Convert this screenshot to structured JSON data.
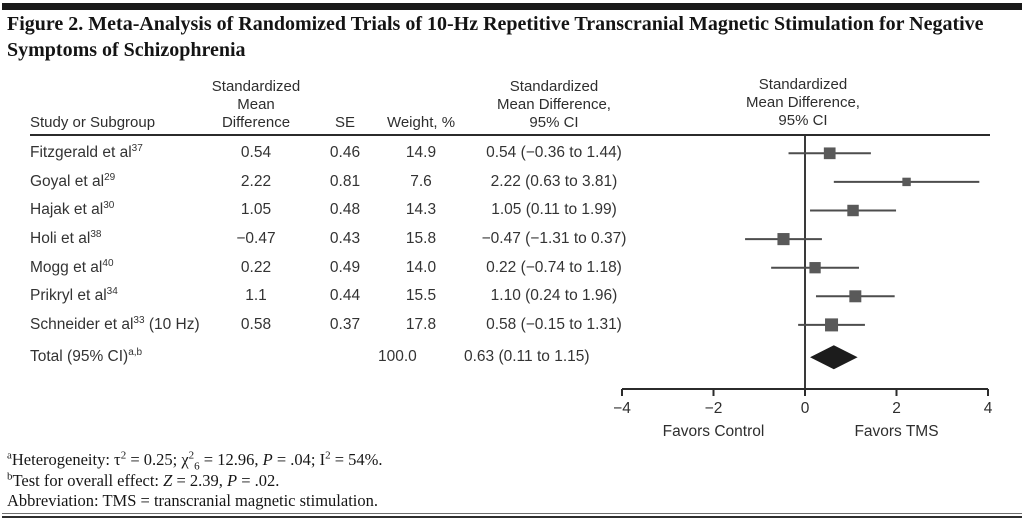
{
  "title": {
    "line1": "Figure 2. Meta-Analysis of Randomized Trials of 10-Hz Repetitive Transcranial Magnetic Stimulation for Negative",
    "line2": "Symptoms of Schizophrenia"
  },
  "table": {
    "headers": {
      "study": "Study or Subgroup",
      "smd": [
        "Standardized",
        "Mean",
        "Difference"
      ],
      "se": "SE",
      "weight": "Weight, %",
      "ci": [
        "Standardized",
        "Mean Difference,",
        "95% CI"
      ],
      "plot": [
        "Standardized",
        "Mean Difference,",
        "95% CI"
      ]
    },
    "rows": [
      {
        "name": "Fitzgerald et al",
        "ref": "37",
        "suffix": "",
        "smd": "0.54",
        "se": "0.46",
        "weight": "14.9",
        "ci": "0.54 (−0.36 to 1.44)"
      },
      {
        "name": "Goyal et al",
        "ref": "29",
        "suffix": "",
        "smd": "2.22",
        "se": "0.81",
        "weight": "7.6",
        "ci": "2.22 (0.63 to 3.81)"
      },
      {
        "name": "Hajak et al",
        "ref": "30",
        "suffix": "",
        "smd": "1.05",
        "se": "0.48",
        "weight": "14.3",
        "ci": "1.05 (0.11 to 1.99)"
      },
      {
        "name": "Holi et al",
        "ref": "38",
        "suffix": "",
        "smd": "−0.47",
        "se": "0.43",
        "weight": "15.8",
        "ci": "−0.47 (−1.31 to 0.37)"
      },
      {
        "name": "Mogg et al",
        "ref": "40",
        "suffix": "",
        "smd": "0.22",
        "se": "0.49",
        "weight": "14.0",
        "ci": "0.22 (−0.74 to 1.18)"
      },
      {
        "name": "Prikryl et al",
        "ref": "34",
        "suffix": "",
        "smd": "1.1",
        "se": "0.44",
        "weight": "15.5",
        "ci": "1.10 (0.24 to 1.96)"
      },
      {
        "name": "Schneider et al",
        "ref": "33",
        "suffix": " (10 Hz)",
        "smd": "0.58",
        "se": "0.37",
        "weight": "17.8",
        "ci": "0.58 (−0.15 to 1.31)"
      }
    ],
    "total": {
      "name": "Total (95% CI)",
      "ref": "a,b",
      "weight": "100.0",
      "ci": "0.63 (0.11 to 1.15)"
    }
  },
  "footnotes": {
    "a": {
      "marker": "a",
      "t1": "Heterogeneity: τ",
      "s1": "2",
      "t2": " = 0.25; χ",
      "s2": "2",
      "sb2": "6",
      "t3": " = 12.96, ",
      "i1": "P",
      "t4": " = .04; I",
      "s3": "2",
      "t5": " = 54%."
    },
    "b": {
      "marker": "b",
      "t1": "Test for overall effect: ",
      "i1": "Z",
      "t2": " = 2.39, ",
      "i2": "P",
      "t3": " = .02."
    },
    "abbr": "Abbreviation: TMS = transcranial magnetic stimulation."
  },
  "chart_data": {
    "type": "forest",
    "title": "Figure 2. Meta-Analysis of Randomized Trials of 10-Hz Repetitive Transcranial Magnetic Stimulation for Negative Symptoms of Schizophrenia",
    "xlim": [
      -4,
      4
    ],
    "x_ticks": [
      {
        "v": -4,
        "label": "−4"
      },
      {
        "v": -2,
        "label": "−2"
      },
      {
        "v": 0,
        "label": "0"
      },
      {
        "v": 2,
        "label": "2"
      },
      {
        "v": 4,
        "label": "4"
      }
    ],
    "favors_left": "Favors Control",
    "favors_right": "Favors TMS",
    "studies": [
      {
        "label": "Fitzgerald et al 37",
        "smd": 0.54,
        "ci_low": -0.36,
        "ci_high": 1.44,
        "weight": 14.9
      },
      {
        "label": "Goyal et al 29",
        "smd": 2.22,
        "ci_low": 0.63,
        "ci_high": 3.81,
        "weight": 7.6
      },
      {
        "label": "Hajak et al 30",
        "smd": 1.05,
        "ci_low": 0.11,
        "ci_high": 1.99,
        "weight": 14.3
      },
      {
        "label": "Holi et al 38",
        "smd": -0.47,
        "ci_low": -1.31,
        "ci_high": 0.37,
        "weight": 15.8
      },
      {
        "label": "Mogg et al 40",
        "smd": 0.22,
        "ci_low": -0.74,
        "ci_high": 1.18,
        "weight": 14.0
      },
      {
        "label": "Prikryl et al 34",
        "smd": 1.1,
        "ci_low": 0.24,
        "ci_high": 1.96,
        "weight": 15.5
      },
      {
        "label": "Schneider et al 33 (10 Hz)",
        "smd": 0.58,
        "ci_low": -0.15,
        "ci_high": 1.31,
        "weight": 17.8
      }
    ],
    "total": {
      "label": "Total (95% CI)",
      "smd": 0.63,
      "ci_low": 0.11,
      "ci_high": 1.15,
      "weight": 100.0
    }
  },
  "colors": {
    "text": "#2e2e2e",
    "rule": "#2b2b2b",
    "ci_line": "#4d4d4d",
    "marker": "#595959",
    "diamond": "#1c1c1c",
    "zero_line": "#3a3a3a"
  }
}
